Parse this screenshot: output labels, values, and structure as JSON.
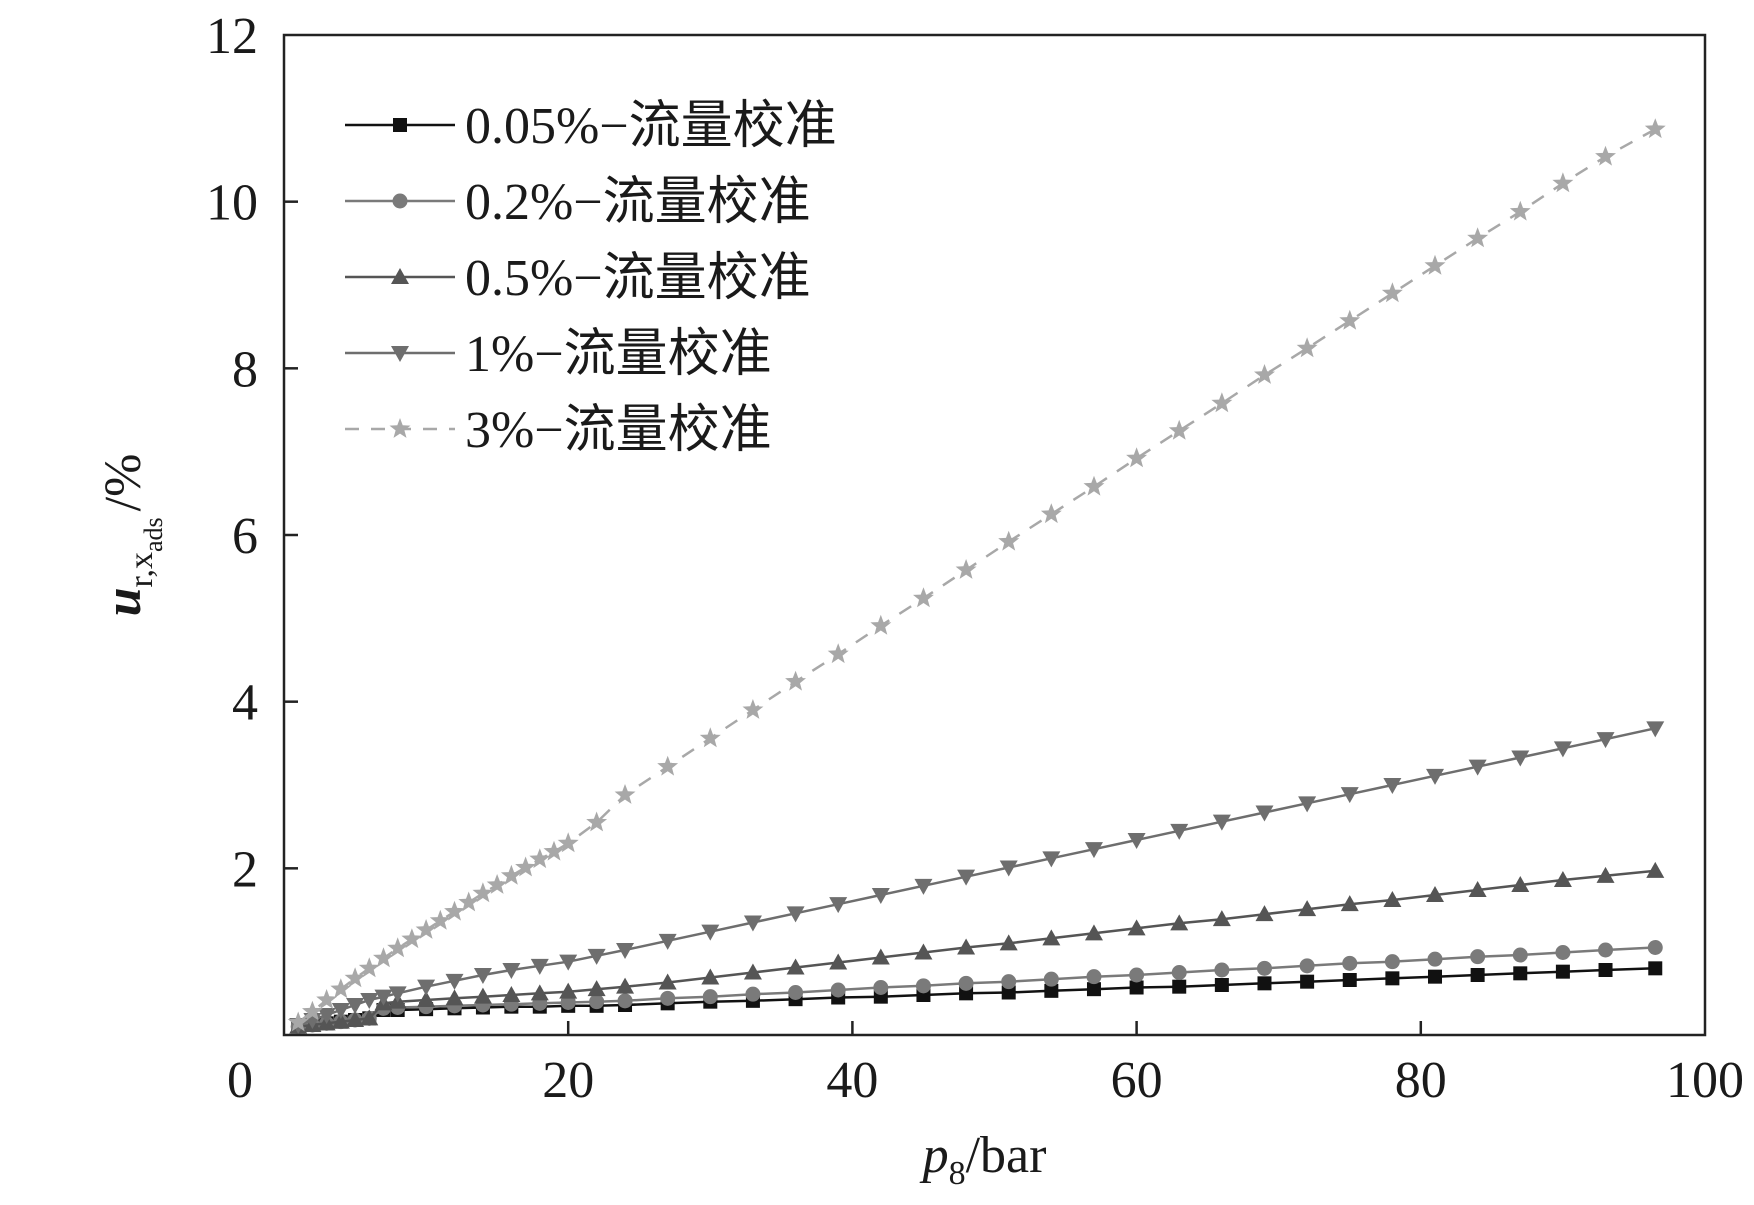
{
  "chart_data": {
    "type": "line",
    "xlabel": {
      "var": "p",
      "sub": "8",
      "unit": "/bar"
    },
    "ylabel": {
      "var": "u",
      "sub": "r,x",
      "subsub": "ads",
      "unit": "/%"
    },
    "xlim": [
      0,
      100
    ],
    "ylim": [
      0,
      12
    ],
    "xticks": [
      "0",
      "20",
      "40",
      "60",
      "80",
      "100"
    ],
    "yticks": [
      "2",
      "4",
      "6",
      "8",
      "10",
      "12"
    ],
    "grid": false,
    "legend_placement": "top-left",
    "series": [
      {
        "name": "0.05%−流量校准",
        "color": "#111111",
        "marker": "square",
        "dash": false,
        "x": [
          1,
          2,
          3,
          4,
          5,
          6,
          7,
          8,
          10,
          12,
          14,
          16,
          18,
          20,
          22,
          24,
          27,
          30,
          33,
          36,
          39,
          42,
          45,
          48,
          51,
          54,
          57,
          60,
          63,
          66,
          69,
          72,
          75,
          78,
          81,
          84,
          87,
          90,
          93,
          96.5
        ],
        "y": [
          0.1,
          0.12,
          0.14,
          0.16,
          0.18,
          0.2,
          0.3,
          0.3,
          0.31,
          0.32,
          0.33,
          0.34,
          0.34,
          0.35,
          0.35,
          0.36,
          0.38,
          0.4,
          0.41,
          0.43,
          0.45,
          0.46,
          0.48,
          0.5,
          0.51,
          0.53,
          0.55,
          0.57,
          0.58,
          0.6,
          0.62,
          0.64,
          0.66,
          0.68,
          0.7,
          0.72,
          0.74,
          0.76,
          0.78,
          0.8
        ]
      },
      {
        "name": "0.2%−流量校准",
        "color": "#7a7a7a",
        "marker": "circle",
        "dash": false,
        "x": [
          1,
          2,
          3,
          4,
          5,
          6,
          7,
          8,
          10,
          12,
          14,
          16,
          18,
          20,
          22,
          24,
          27,
          30,
          33,
          36,
          39,
          42,
          45,
          48,
          51,
          54,
          57,
          60,
          63,
          66,
          69,
          72,
          75,
          78,
          81,
          84,
          87,
          90,
          93,
          96.5
        ],
        "y": [
          0.1,
          0.12,
          0.14,
          0.16,
          0.18,
          0.2,
          0.32,
          0.33,
          0.34,
          0.35,
          0.36,
          0.37,
          0.38,
          0.39,
          0.4,
          0.41,
          0.44,
          0.46,
          0.49,
          0.51,
          0.54,
          0.57,
          0.59,
          0.62,
          0.64,
          0.67,
          0.7,
          0.72,
          0.75,
          0.78,
          0.8,
          0.83,
          0.86,
          0.88,
          0.91,
          0.94,
          0.96,
          0.99,
          1.02,
          1.05
        ]
      },
      {
        "name": "0.5%−流量校准",
        "color": "#555555",
        "marker": "triangle-up",
        "dash": false,
        "x": [
          1,
          2,
          3,
          4,
          5,
          6,
          7,
          8,
          10,
          12,
          14,
          16,
          18,
          20,
          22,
          24,
          27,
          30,
          33,
          36,
          39,
          42,
          45,
          48,
          51,
          54,
          57,
          60,
          63,
          66,
          69,
          72,
          75,
          78,
          81,
          84,
          87,
          90,
          93,
          96.5
        ],
        "y": [
          0.1,
          0.12,
          0.14,
          0.16,
          0.18,
          0.2,
          0.38,
          0.4,
          0.42,
          0.44,
          0.46,
          0.48,
          0.5,
          0.52,
          0.55,
          0.58,
          0.63,
          0.69,
          0.75,
          0.81,
          0.87,
          0.93,
          0.99,
          1.05,
          1.1,
          1.16,
          1.22,
          1.28,
          1.34,
          1.39,
          1.45,
          1.51,
          1.57,
          1.62,
          1.68,
          1.74,
          1.8,
          1.86,
          1.91,
          1.97
        ]
      },
      {
        "name": "1%−流量校准",
        "color": "#6e6e6e",
        "marker": "triangle-down",
        "dash": false,
        "x": [
          1,
          2,
          3,
          4,
          5,
          6,
          7,
          8,
          10,
          12,
          14,
          16,
          18,
          20,
          22,
          24,
          27,
          30,
          33,
          36,
          39,
          42,
          45,
          48,
          51,
          54,
          57,
          60,
          63,
          66,
          69,
          72,
          75,
          78,
          81,
          84,
          87,
          90,
          93,
          96.5
        ],
        "y": [
          0.12,
          0.18,
          0.24,
          0.3,
          0.36,
          0.42,
          0.46,
          0.5,
          0.58,
          0.65,
          0.72,
          0.78,
          0.83,
          0.88,
          0.95,
          1.02,
          1.13,
          1.24,
          1.35,
          1.46,
          1.57,
          1.68,
          1.79,
          1.9,
          2.01,
          2.12,
          2.23,
          2.34,
          2.45,
          2.56,
          2.67,
          2.78,
          2.89,
          3.0,
          3.11,
          3.22,
          3.33,
          3.44,
          3.55,
          3.68
        ]
      },
      {
        "name": "3%−流量校准",
        "color": "#a8a8a8",
        "marker": "star",
        "dash": true,
        "x": [
          1,
          2,
          3,
          4,
          5,
          6,
          7,
          8,
          9,
          10,
          11,
          12,
          13,
          14,
          15,
          16,
          17,
          18,
          19,
          20,
          22,
          24,
          27,
          30,
          33,
          36,
          39,
          42,
          45,
          48,
          51,
          54,
          57,
          60,
          63,
          66,
          69,
          72,
          75,
          78,
          81,
          84,
          87,
          90,
          93,
          96.5
        ],
        "y": [
          0.15,
          0.28,
          0.42,
          0.55,
          0.68,
          0.8,
          0.92,
          1.04,
          1.15,
          1.26,
          1.37,
          1.48,
          1.59,
          1.7,
          1.8,
          1.91,
          2.01,
          2.11,
          2.2,
          2.3,
          2.55,
          2.88,
          3.22,
          3.56,
          3.9,
          4.24,
          4.57,
          4.91,
          5.24,
          5.58,
          5.92,
          6.25,
          6.58,
          6.92,
          7.25,
          7.58,
          7.92,
          8.24,
          8.57,
          8.9,
          9.23,
          9.56,
          9.88,
          10.22,
          10.54,
          10.87
        ]
      }
    ]
  }
}
